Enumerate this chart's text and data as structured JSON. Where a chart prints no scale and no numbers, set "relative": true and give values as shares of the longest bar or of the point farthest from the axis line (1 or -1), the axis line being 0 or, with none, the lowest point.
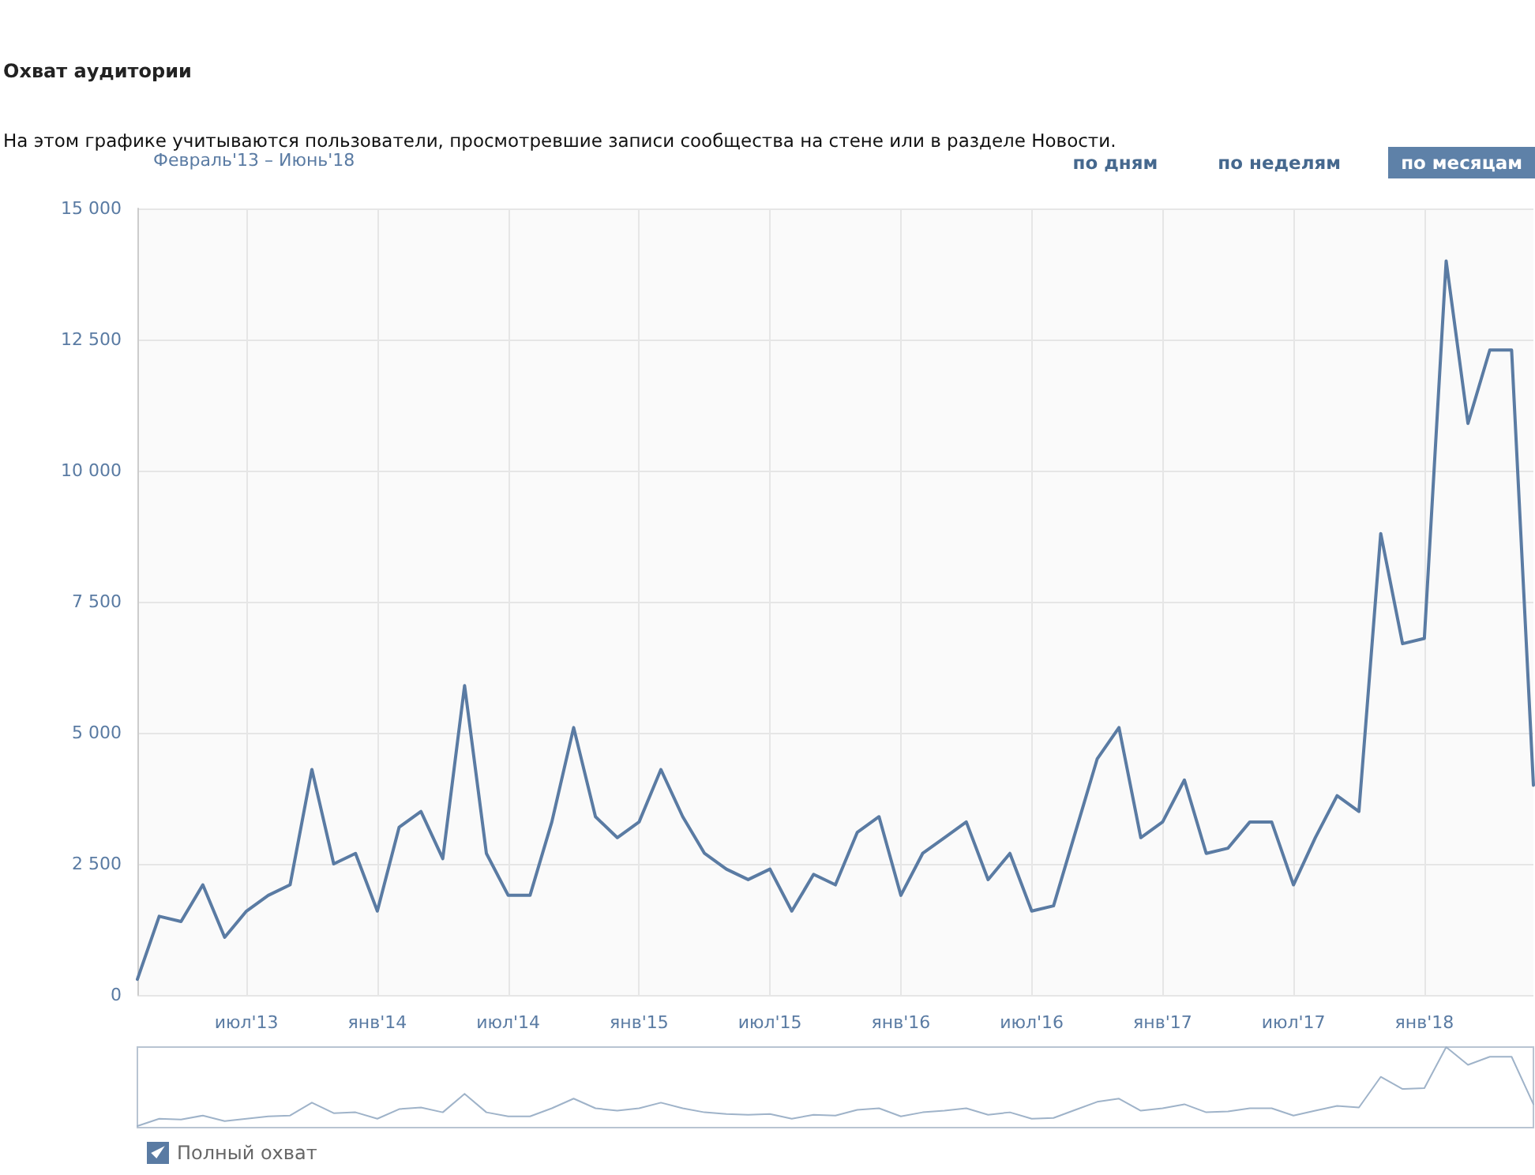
{
  "chart_data": [
    {
      "type": "line",
      "title": "Охват аудитории",
      "subtitle": "На этом графике учитываются пользователи, просмотревшие записи сообщества на стене или в разделе Новости.",
      "annotations": [
        "Февраль'13 – Июнь'18",
        "по дням",
        "по неделям",
        "по месяцам"
      ],
      "categories": [
        null,
        null,
        null,
        null,
        null,
        "июл'13",
        null,
        null,
        null,
        null,
        null,
        "янв'14",
        null,
        null,
        null,
        null,
        null,
        "июл'14",
        null,
        null,
        null,
        null,
        null,
        "янв'15",
        null,
        null,
        null,
        null,
        null,
        "июл'15",
        null,
        null,
        null,
        null,
        null,
        "янв'16",
        null,
        null,
        null,
        null,
        null,
        "июл'16",
        null,
        null,
        null,
        null,
        null,
        "янв'17",
        null,
        null,
        null,
        null,
        null,
        "июл'17",
        null,
        null,
        null,
        null,
        null,
        "янв'18",
        null,
        null,
        null,
        null,
        null
      ],
      "series": [
        {
          "name": "Полный охват",
          "color": "#5a7ba3",
          "values": [
            300,
            1500,
            1400,
            2100,
            1100,
            1600,
            1900,
            2100,
            4300,
            2500,
            2700,
            1600,
            3200,
            3500,
            2600,
            5900,
            2700,
            1900,
            1900,
            3300,
            5100,
            3400,
            3000,
            3300,
            4300,
            3400,
            2700,
            2400,
            2200,
            2400,
            1600,
            2300,
            2100,
            3100,
            3400,
            1900,
            2700,
            3000,
            3300,
            2200,
            2700,
            1600,
            1700,
            3100,
            4500,
            5100,
            3000,
            3300,
            4100,
            2700,
            2800,
            3300,
            3300,
            2100,
            3000,
            3800,
            3500,
            8800,
            6700,
            6800,
            14000,
            10900,
            12300,
            12300,
            4000
          ]
        }
      ],
      "ylim": [
        0,
        15000
      ],
      "yticks": [
        {
          "value": 0,
          "label": "0"
        },
        {
          "value": 2500,
          "label": "2 500"
        },
        {
          "value": 5000,
          "label": "5 000"
        },
        {
          "value": 7500,
          "label": "7 500"
        },
        {
          "value": 10000,
          "label": "10 000"
        },
        {
          "value": 12500,
          "label": "12 500"
        },
        {
          "value": 15000,
          "label": "15 000"
        }
      ],
      "grid": true,
      "legend": "bottom left",
      "marker": "none",
      "line_style": "solid"
    },
    {
      "type": "line",
      "relative": true,
      "categories": [
        null,
        null,
        null,
        null,
        null,
        null,
        null,
        null,
        null,
        null,
        null,
        null,
        null,
        null,
        null,
        null,
        null,
        null,
        null,
        null,
        null,
        null,
        null,
        null,
        null,
        null,
        null,
        null,
        null,
        null,
        null,
        null,
        null,
        null,
        null,
        null,
        null,
        null,
        null,
        null,
        null,
        null,
        null,
        null,
        null,
        null,
        null,
        null,
        null,
        null,
        null,
        null,
        null,
        null,
        null,
        null,
        null,
        null,
        null,
        null,
        null,
        null,
        null,
        null,
        null
      ],
      "series": [
        {
          "color": "#9fb3c9",
          "values": [
            0.02,
            0.11,
            0.1,
            0.15,
            0.08,
            0.11,
            0.14,
            0.15,
            0.31,
            0.18,
            0.19,
            0.11,
            0.23,
            0.25,
            0.19,
            0.42,
            0.19,
            0.14,
            0.14,
            0.24,
            0.36,
            0.24,
            0.21,
            0.24,
            0.31,
            0.24,
            0.19,
            0.17,
            0.16,
            0.17,
            0.11,
            0.16,
            0.15,
            0.22,
            0.24,
            0.14,
            0.19,
            0.21,
            0.24,
            0.16,
            0.19,
            0.11,
            0.12,
            0.22,
            0.32,
            0.36,
            0.21,
            0.24,
            0.29,
            0.19,
            0.2,
            0.24,
            0.24,
            0.15,
            0.21,
            0.27,
            0.25,
            0.63,
            0.48,
            0.49,
            1,
            0.78,
            0.88,
            0.88,
            0.29
          ]
        }
      ],
      "marker": "none",
      "line_style": "solid"
    }
  ]
}
